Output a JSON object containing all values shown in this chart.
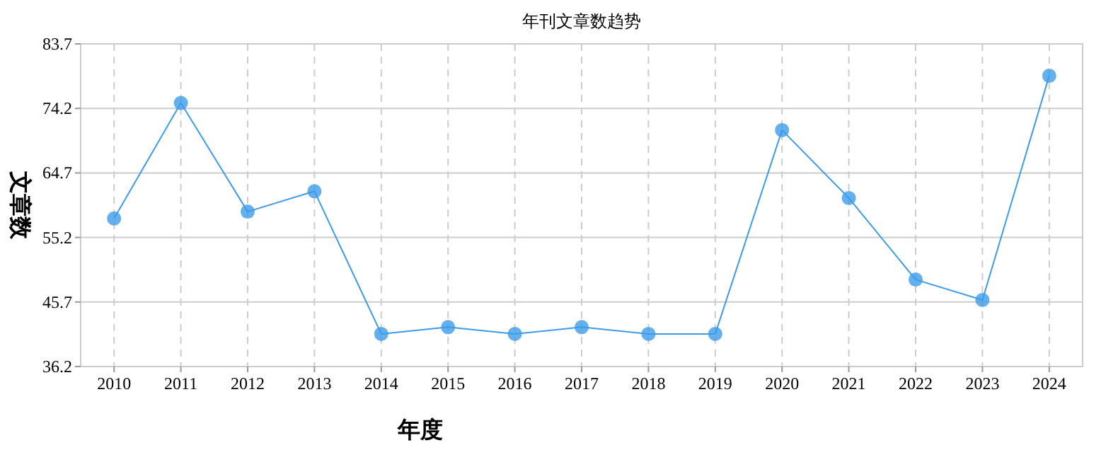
{
  "chart_data": {
    "type": "line",
    "title": "年刊文章数趋势",
    "xlabel": "年度",
    "ylabel": "文章数",
    "categories": [
      "2010",
      "2011",
      "2012",
      "2013",
      "2014",
      "2015",
      "2016",
      "2017",
      "2018",
      "2019",
      "2020",
      "2021",
      "2022",
      "2023",
      "2024"
    ],
    "series": [
      {
        "color": "#3d9be9",
        "values": [
          58,
          75,
          59,
          62,
          41,
          42,
          41,
          42,
          41,
          41,
          71,
          61,
          49,
          46,
          79
        ]
      }
    ],
    "ylim": [
      36.2,
      83.7
    ],
    "yticks": [
      36.2,
      45.7,
      55.2,
      64.7,
      74.2,
      83.7
    ],
    "grid": true,
    "marker": "circle",
    "line_style": "solid"
  }
}
